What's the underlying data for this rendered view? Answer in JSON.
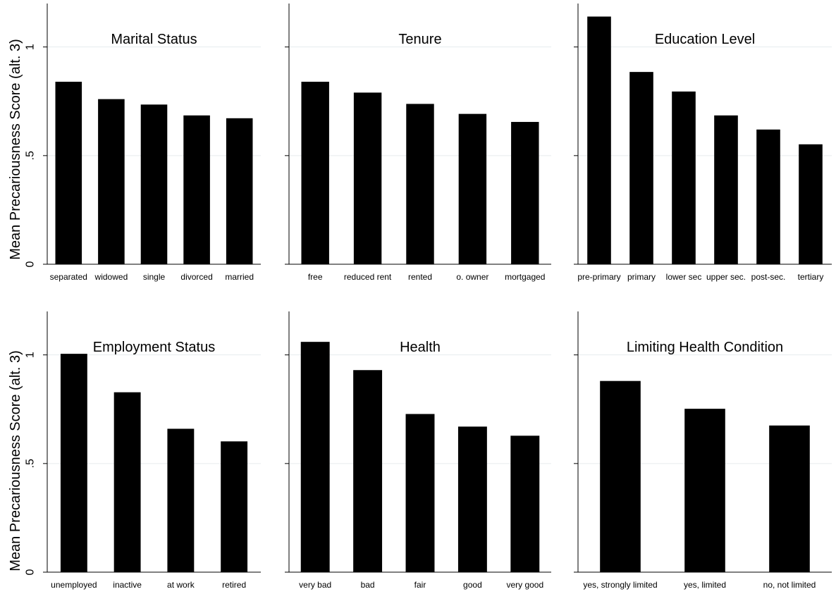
{
  "chart_data": [
    {
      "type": "bar",
      "title": "Marital Status",
      "ylabel": "Mean Precariousness Score (alt. 3)",
      "yticks": [
        "0",
        ".5",
        "1"
      ],
      "ylim": [
        0,
        1.2
      ],
      "grid": true,
      "categories": [
        "separated",
        "widowed",
        "single",
        "divorced",
        "married"
      ],
      "values": [
        0.84,
        0.76,
        0.735,
        0.685,
        0.672
      ]
    },
    {
      "type": "bar",
      "title": "Tenure",
      "ylabel": "",
      "yticks": [],
      "ylim": [
        0,
        1.2
      ],
      "grid": true,
      "categories": [
        "free",
        "reduced rent",
        "rented",
        "o. owner",
        "mortgaged"
      ],
      "values": [
        0.84,
        0.79,
        0.738,
        0.692,
        0.655
      ]
    },
    {
      "type": "bar",
      "title": "Education Level",
      "ylabel": "",
      "yticks": [],
      "ylim": [
        0,
        1.2
      ],
      "grid": true,
      "categories": [
        "pre-primary",
        "primary",
        "lower sec",
        "upper sec.",
        "post-sec.",
        "tertiary"
      ],
      "values": [
        1.14,
        0.885,
        0.795,
        0.685,
        0.62,
        0.552
      ]
    },
    {
      "type": "bar",
      "title": "Employment Status",
      "ylabel": "Mean Precariousness Score (alt. 3)",
      "yticks": [
        "0",
        ".5",
        "1"
      ],
      "ylim": [
        0,
        1.2
      ],
      "grid": true,
      "categories": [
        "unemployed",
        "inactive",
        "at work",
        "retired"
      ],
      "values": [
        1.005,
        0.828,
        0.66,
        0.602
      ]
    },
    {
      "type": "bar",
      "title": "Health",
      "ylabel": "",
      "yticks": [],
      "ylim": [
        0,
        1.2
      ],
      "grid": true,
      "categories": [
        "very bad",
        "bad",
        "fair",
        "good",
        "very good"
      ],
      "values": [
        1.06,
        0.93,
        0.728,
        0.67,
        0.628
      ]
    },
    {
      "type": "bar",
      "title": "Limiting Health Condition",
      "ylabel": "",
      "yticks": [],
      "ylim": [
        0,
        1.2
      ],
      "grid": true,
      "categories": [
        "yes, strongly limited",
        "yes, limited",
        "no, not limited"
      ],
      "values": [
        0.88,
        0.752,
        0.675
      ]
    }
  ]
}
